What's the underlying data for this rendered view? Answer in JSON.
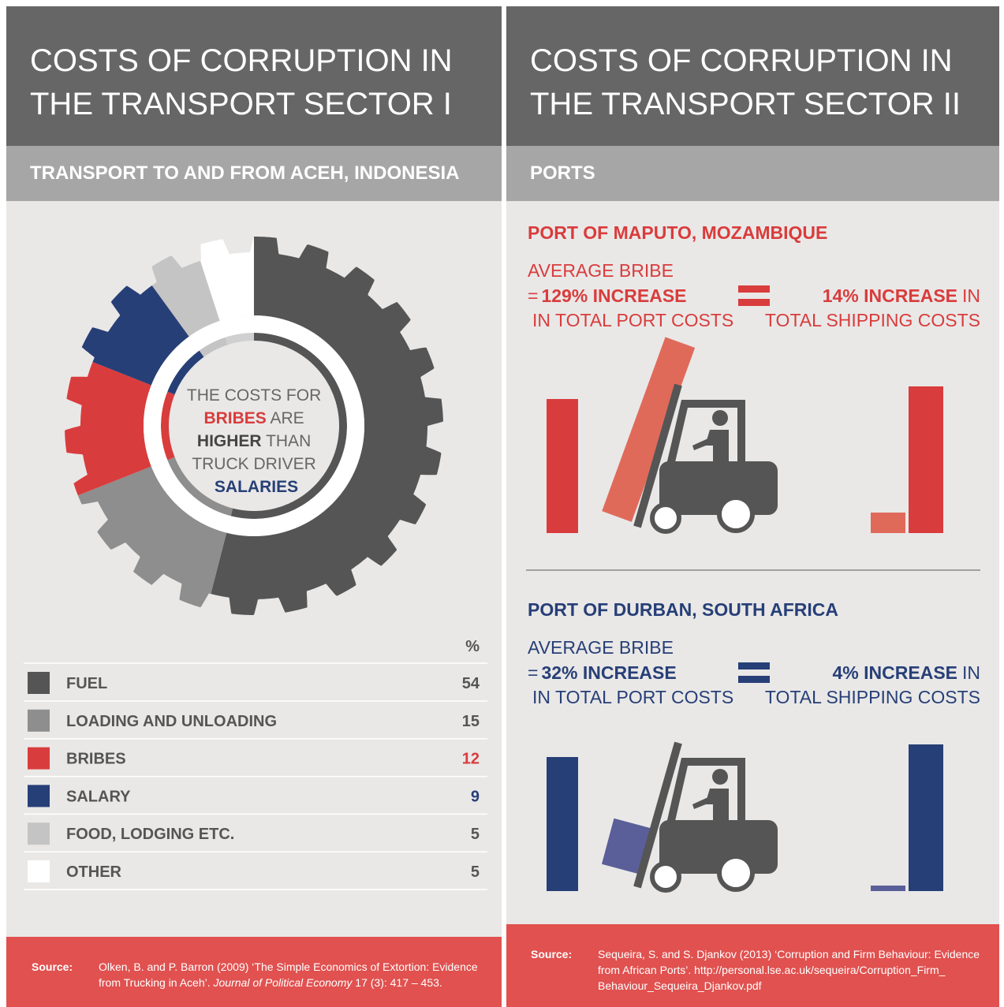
{
  "left": {
    "title": "COSTS OF CORRUPTION IN THE TRANSPORT SECTOR I",
    "subtitle": "TRANSPORT TO AND FROM ACEH, INDONESIA",
    "source_label": "Source:",
    "source": [
      "Olken, B. and P. Barron (2009) ‘The Simple Economics of Extortion: Evidence from Trucking in Aceh’.",
      "Journal of Political Economy",
      "17 (3): 417 – 453."
    ]
  },
  "chart_data": {
    "type": "pie",
    "center_text": [
      "THE COSTS FOR",
      "BRIBES",
      "ARE",
      "HIGHER",
      "THAN",
      "TRUCK DRIVER",
      "SALARIES"
    ],
    "value_header": "%",
    "categories": [
      "FUEL",
      "LOADING AND UNLOADING",
      "BRIBES",
      "SALARY",
      "FOOD, LODGING ETC.",
      "OTHER"
    ],
    "values": [
      54,
      15,
      12,
      9,
      5,
      5
    ],
    "colors": [
      "#555555",
      "#8e8e8e",
      "#d93c3c",
      "#273f77",
      "#c4c4c4",
      "#ffffff"
    ],
    "value_colors": [
      "#555555",
      "#555555",
      "#d93c3c",
      "#273f77",
      "#555555",
      "#555555"
    ]
  },
  "right": {
    "title": "COSTS OF CORRUPTION IN THE TRANSPORT SECTOR II",
    "subtitle": "PORTS",
    "ports": [
      {
        "name": "PORT OF MAPUTO, MOZAMBIQUE",
        "label": "AVERAGE BRIBE",
        "equals": "=",
        "port_increase": "129% INCREASE",
        "port_suffix": "IN TOTAL PORT COSTS",
        "shipping_increase": "14% INCREASE",
        "shipping_in": "IN",
        "shipping_suffix": "TOTAL SHIPPING COSTS"
      },
      {
        "name": "PORT OF DURBAN, SOUTH AFRICA",
        "label": "AVERAGE BRIBE",
        "equals": "=",
        "port_increase": "32% INCREASE",
        "port_suffix": "IN TOTAL PORT COSTS",
        "shipping_increase": "4% INCREASE",
        "shipping_in": "IN",
        "shipping_suffix": "TOTAL SHIPPING COSTS"
      }
    ],
    "source_label": "Source:",
    "source": "Sequeira, S. and S. Djankov (2013) ‘Corruption and Firm Behaviour: Evidence from African Ports’. http://personal.lse.ac.uk/sequeira/Corruption_Firm_ Behaviour_Sequeira_Djankov.pdf"
  }
}
